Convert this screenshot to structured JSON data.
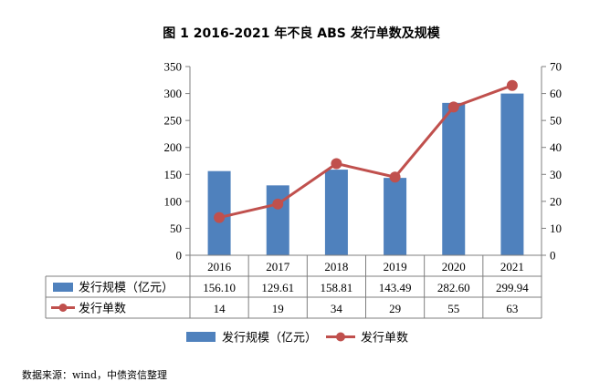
{
  "title": "图 1 2016-2021 年不良 ABS 发行单数及规模",
  "source_note": "数据来源：wind，中债资信整理",
  "colors": {
    "bar": "#4f81bd",
    "line": "#c0504d",
    "axis": "#7f7f7f"
  },
  "chart_data": {
    "type": "bar",
    "categories": [
      "2016",
      "2017",
      "2018",
      "2019",
      "2020",
      "2021"
    ],
    "series": [
      {
        "name": "发行规模（亿元）",
        "type": "bar",
        "axis": "left",
        "values": [
          156.1,
          129.61,
          158.81,
          143.49,
          282.6,
          299.94
        ],
        "labels": [
          "156.10",
          "129.61",
          "158.81",
          "143.49",
          "282.60",
          "299.94"
        ]
      },
      {
        "name": "发行单数",
        "type": "line",
        "axis": "right",
        "values": [
          14,
          19,
          34,
          29,
          55,
          63
        ],
        "labels": [
          "14",
          "19",
          "34",
          "29",
          "55",
          "63"
        ]
      }
    ],
    "y_left": {
      "lim": [
        0,
        350
      ],
      "ticks": [
        "0",
        "50",
        "100",
        "150",
        "200",
        "250",
        "300",
        "350"
      ]
    },
    "y_right": {
      "lim": [
        0,
        70
      ],
      "ticks": [
        "0",
        "10",
        "20",
        "30",
        "40",
        "50",
        "60",
        "70"
      ]
    },
    "data_table": true,
    "legend_position": "bottom",
    "grid": false
  }
}
